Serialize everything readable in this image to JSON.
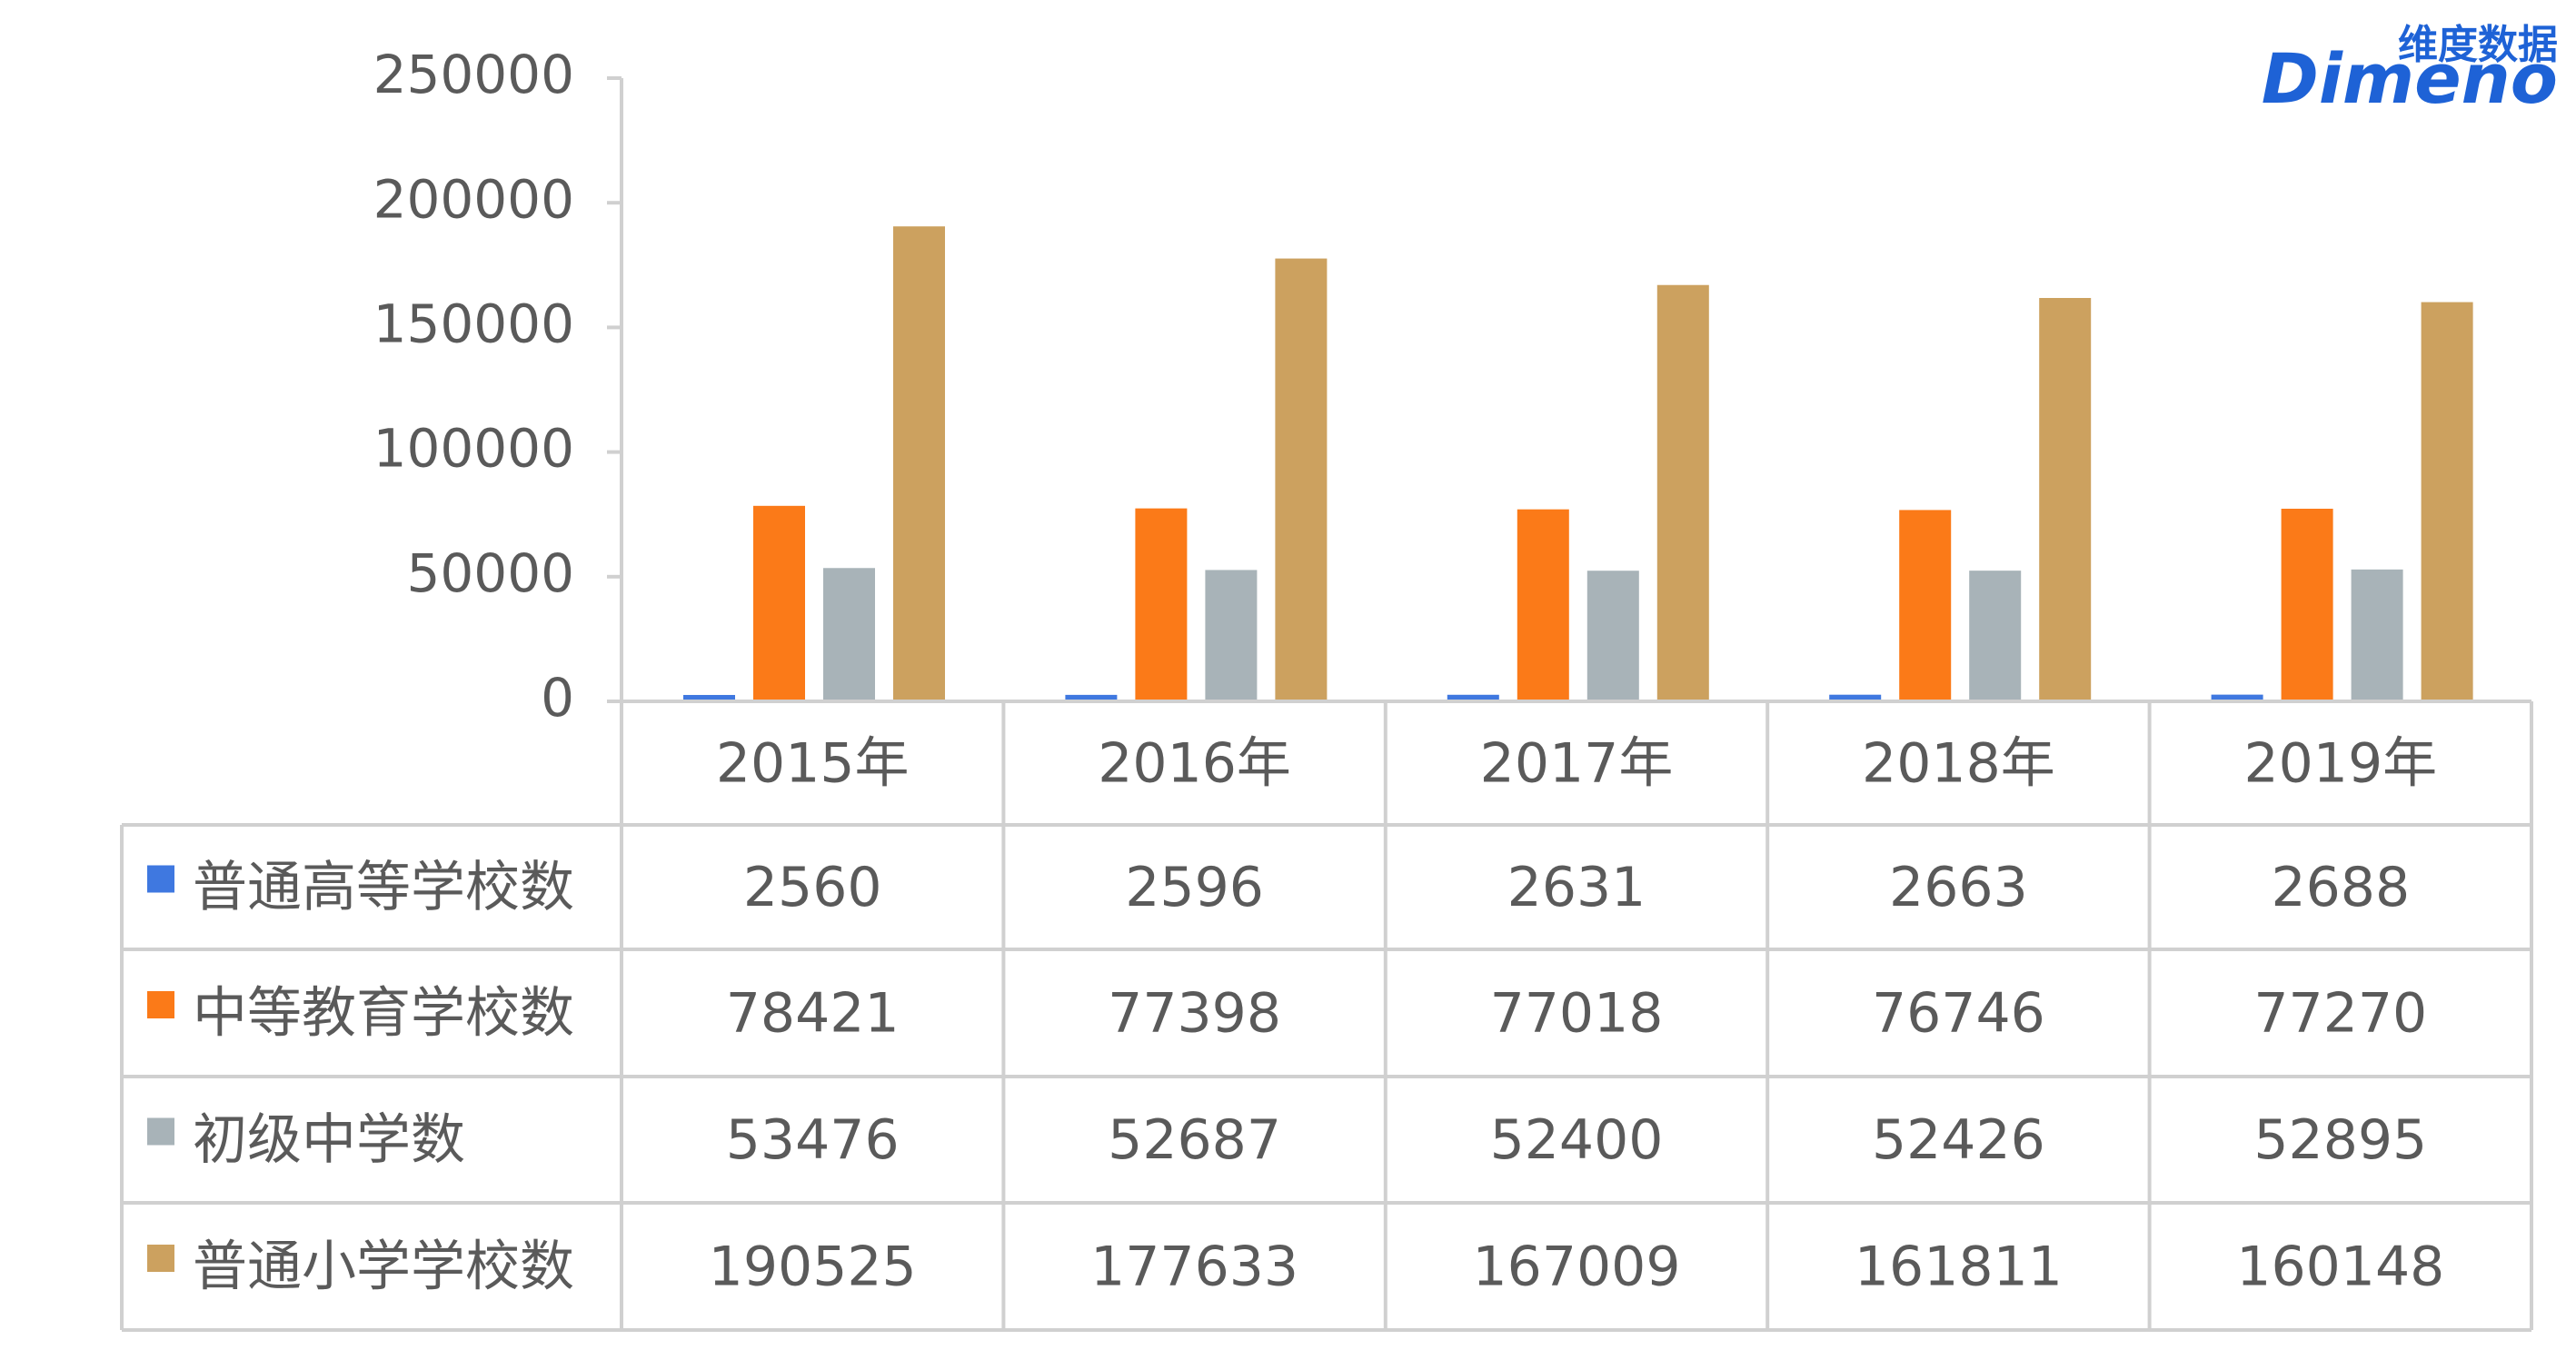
{
  "chart_data": {
    "type": "bar",
    "categories": [
      "2015年",
      "2016年",
      "2017年",
      "2018年",
      "2019年"
    ],
    "series": [
      {
        "name": "普通高等学校数",
        "color": "#3f78e0",
        "values": [
          2560,
          2596,
          2631,
          2663,
          2688
        ]
      },
      {
        "name": "中等教育学校数",
        "color": "#fb7a18",
        "values": [
          78421,
          77398,
          77018,
          76746,
          77270
        ]
      },
      {
        "name": "初级中学数",
        "color": "#a8b3b8",
        "values": [
          53476,
          52687,
          52400,
          52426,
          52895
        ]
      },
      {
        "name": "普通小学学校数",
        "color": "#cca15f",
        "values": [
          190525,
          177633,
          167009,
          161811,
          160148
        ]
      }
    ],
    "ylim": [
      0,
      250000
    ],
    "yticks": [
      0,
      50000,
      100000,
      150000,
      200000,
      250000
    ],
    "grid": false,
    "data_table": true
  },
  "logo": {
    "cn": "维度数据",
    "en": "Dimeno"
  }
}
